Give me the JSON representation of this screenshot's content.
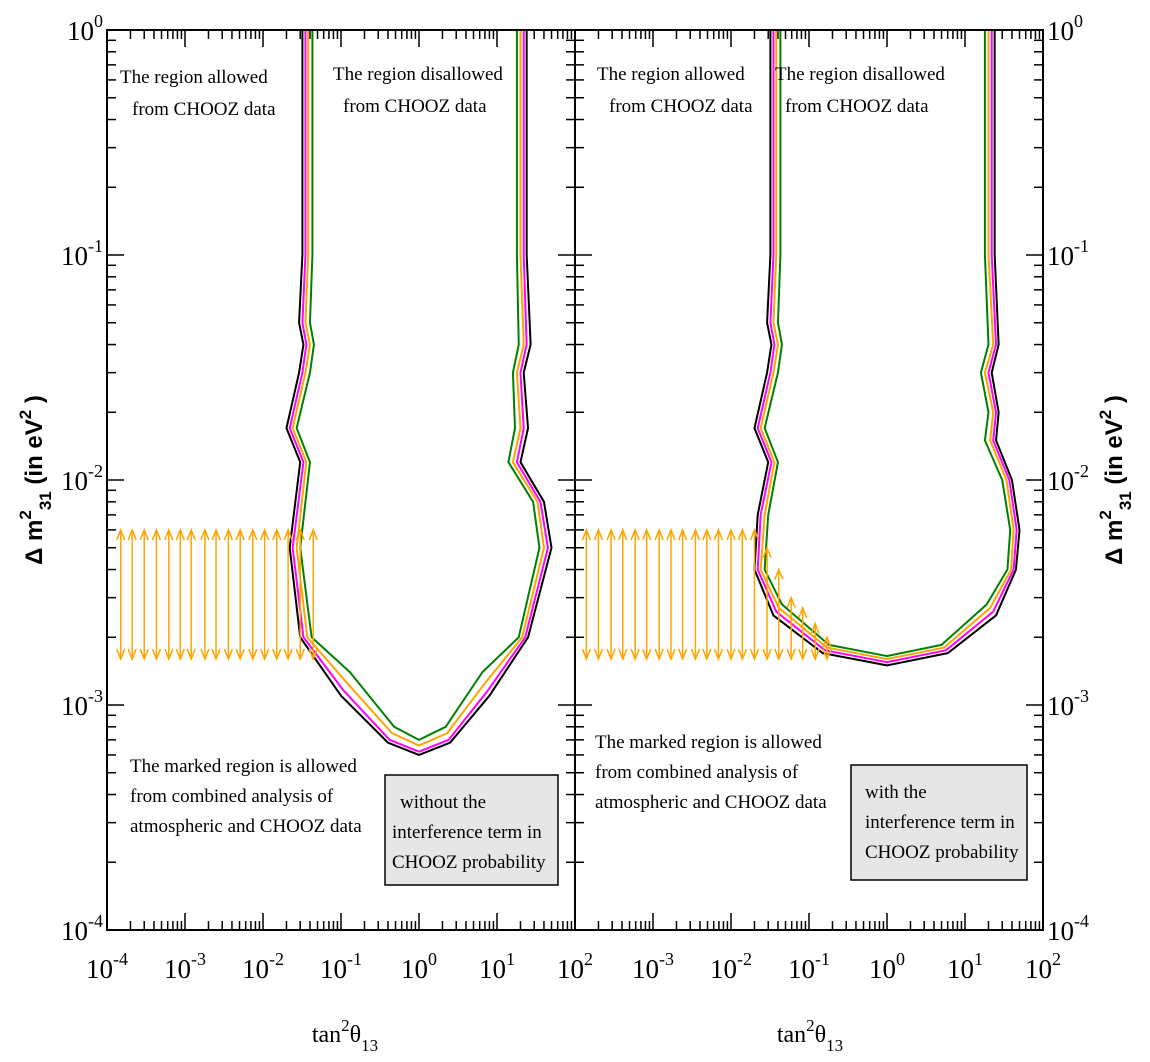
{
  "chart_data": [
    {
      "type": "contour",
      "xscale": "log",
      "yscale": "log",
      "xlim": [
        0.0001,
        100
      ],
      "ylim": [
        0.0001,
        1
      ],
      "xticks": [
        {
          "value": 0.0001,
          "label": "10",
          "exponent": "-4"
        },
        {
          "value": 0.001,
          "label": "10",
          "exponent": "-3"
        },
        {
          "value": 0.01,
          "label": "10",
          "exponent": "-2"
        },
        {
          "value": 0.1,
          "label": "10",
          "exponent": "-1"
        },
        {
          "value": 1,
          "label": "10",
          "exponent": "0"
        },
        {
          "value": 10,
          "label": "10",
          "exponent": "1"
        },
        {
          "value": 100,
          "label": "10",
          "exponent": "2"
        }
      ],
      "yticks": [
        {
          "value": 0.0001,
          "label": "10",
          "exponent": "-4"
        },
        {
          "value": 0.001,
          "label": "10",
          "exponent": "-3"
        },
        {
          "value": 0.01,
          "label": "10",
          "exponent": "-2"
        },
        {
          "value": 0.1,
          "label": "10",
          "exponent": "-1"
        },
        {
          "value": 1,
          "label": "10",
          "exponent": "0"
        }
      ],
      "ylabel_side": "left",
      "xlabel": [
        {
          "text": "tan"
        },
        {
          "text": "2",
          "shift": "sup"
        },
        {
          "text": "θ"
        },
        {
          "text": "13",
          "shift": "sub"
        }
      ],
      "ylabel": [
        {
          "text": "Δ m"
        },
        {
          "text": "2",
          "shift": "sup"
        },
        {
          "text": "31",
          "shift": "sub"
        },
        {
          "text": "  (in eV"
        },
        {
          "text": "2",
          "shift": "sup"
        },
        {
          "text": " )"
        }
      ],
      "series": [
        {
          "color": "#000000",
          "x": [
            0.032,
            0.032,
            0.029,
            0.033,
            0.029,
            0.02,
            0.03,
            0.022,
            0.03,
            0.1,
            0.4,
            1,
            2.5,
            8,
            25,
            50,
            40,
            20,
            25,
            22,
            27,
            24,
            24
          ],
          "y": [
            1,
            0.1,
            0.05,
            0.04,
            0.03,
            0.017,
            0.012,
            0.005,
            0.002,
            0.0011,
            0.00068,
            0.0006,
            0.00068,
            0.0011,
            0.002,
            0.005,
            0.008,
            0.012,
            0.017,
            0.03,
            0.04,
            0.1,
            1
          ]
        },
        {
          "color": "#ff00ff",
          "x": [
            0.035,
            0.035,
            0.032,
            0.036,
            0.032,
            0.022,
            0.033,
            0.024,
            0.033,
            0.11,
            0.42,
            1,
            2.4,
            7.5,
            23,
            45,
            36,
            18,
            22,
            20,
            24,
            22,
            22
          ],
          "y": [
            1,
            0.1,
            0.05,
            0.04,
            0.03,
            0.017,
            0.012,
            0.005,
            0.002,
            0.00115,
            0.0007,
            0.00062,
            0.0007,
            0.00115,
            0.002,
            0.005,
            0.008,
            0.012,
            0.017,
            0.03,
            0.04,
            0.1,
            1
          ]
        },
        {
          "color": "#ffa500",
          "x": [
            0.038,
            0.038,
            0.035,
            0.04,
            0.035,
            0.024,
            0.036,
            0.027,
            0.037,
            0.12,
            0.45,
            1,
            2.3,
            7,
            21,
            40,
            33,
            16,
            20,
            18,
            22,
            20,
            20
          ],
          "y": [
            1,
            0.1,
            0.05,
            0.04,
            0.03,
            0.017,
            0.012,
            0.005,
            0.002,
            0.00125,
            0.00075,
            0.00066,
            0.00075,
            0.00125,
            0.002,
            0.005,
            0.008,
            0.012,
            0.017,
            0.03,
            0.04,
            0.1,
            1
          ]
        },
        {
          "color": "#008000",
          "x": [
            0.043,
            0.043,
            0.04,
            0.045,
            0.04,
            0.027,
            0.04,
            0.03,
            0.042,
            0.13,
            0.48,
            1,
            2.2,
            6.5,
            19,
            35,
            29,
            14,
            17,
            16,
            19,
            18,
            18
          ],
          "y": [
            1,
            0.1,
            0.05,
            0.04,
            0.03,
            0.017,
            0.012,
            0.005,
            0.002,
            0.0014,
            0.0008,
            0.0007,
            0.0008,
            0.0014,
            0.002,
            0.005,
            0.008,
            0.012,
            0.017,
            0.03,
            0.04,
            0.1,
            1
          ]
        }
      ],
      "arrows": {
        "color": "#ffa500",
        "x": [
          0.00015,
          0.00021,
          0.0003,
          0.00043,
          0.00062,
          0.00087,
          0.0012,
          0.0018,
          0.0025,
          0.0036,
          0.0051,
          0.0074,
          0.0105,
          0.015,
          0.021,
          0.03,
          0.044
        ],
        "y_low": [
          0.0016,
          0.0016,
          0.0016,
          0.0016,
          0.0016,
          0.0016,
          0.0016,
          0.0016,
          0.0016,
          0.0016,
          0.0016,
          0.0016,
          0.0016,
          0.0016,
          0.0016,
          0.0016,
          0.0016
        ],
        "y_high": [
          0.006,
          0.006,
          0.006,
          0.006,
          0.006,
          0.006,
          0.006,
          0.006,
          0.006,
          0.006,
          0.006,
          0.006,
          0.006,
          0.006,
          0.006,
          0.006,
          0.006
        ]
      },
      "annotations": [
        [
          "The region allowed",
          "from CHOOZ data"
        ],
        [
          "The region disallowed",
          "from CHOOZ data"
        ],
        [
          "The marked region is allowed",
          "from combined analysis of",
          "atmospheric and CHOOZ data"
        ]
      ],
      "note": [
        "without the",
        "interference term in",
        "CHOOZ probability"
      ]
    },
    {
      "type": "contour",
      "xscale": "log",
      "yscale": "log",
      "xlim": [
        0.0001,
        100
      ],
      "ylim": [
        0.0001,
        1
      ],
      "xticks": [
        {
          "value": 0.001,
          "label": "10",
          "exponent": "-3"
        },
        {
          "value": 0.01,
          "label": "10",
          "exponent": "-2"
        },
        {
          "value": 0.1,
          "label": "10",
          "exponent": "-1"
        },
        {
          "value": 1,
          "label": "10",
          "exponent": "0"
        },
        {
          "value": 10,
          "label": "10",
          "exponent": "1"
        },
        {
          "value": 100,
          "label": "10",
          "exponent": "2"
        }
      ],
      "yticks": [
        {
          "value": 0.0001,
          "label": "10",
          "exponent": "-4"
        },
        {
          "value": 0.001,
          "label": "10",
          "exponent": "-3"
        },
        {
          "value": 0.01,
          "label": "10",
          "exponent": "-2"
        },
        {
          "value": 0.1,
          "label": "10",
          "exponent": "-1"
        },
        {
          "value": 1,
          "label": "10",
          "exponent": "0"
        }
      ],
      "ylabel_side": "right",
      "xlabel": [
        {
          "text": "tan"
        },
        {
          "text": "2",
          "shift": "sup"
        },
        {
          "text": "θ"
        },
        {
          "text": "13",
          "shift": "sub"
        }
      ],
      "ylabel": [
        {
          "text": "Δ m"
        },
        {
          "text": "2",
          "shift": "sup"
        },
        {
          "text": "31",
          "shift": "sub"
        },
        {
          "text": "  (in eV"
        },
        {
          "text": "2",
          "shift": "sup"
        },
        {
          "text": " )"
        }
      ],
      "series": [
        {
          "color": "#000000",
          "x": [
            0.032,
            0.032,
            0.029,
            0.033,
            0.029,
            0.02,
            0.03,
            0.022,
            0.02,
            0.035,
            0.15,
            1,
            6,
            25,
            45,
            50,
            40,
            25,
            27,
            22,
            27,
            24,
            24
          ],
          "y": [
            1,
            0.1,
            0.05,
            0.04,
            0.03,
            0.017,
            0.012,
            0.007,
            0.004,
            0.0025,
            0.0017,
            0.0015,
            0.0017,
            0.0025,
            0.004,
            0.006,
            0.01,
            0.015,
            0.02,
            0.03,
            0.04,
            0.1,
            1
          ]
        },
        {
          "color": "#ff00ff",
          "x": [
            0.035,
            0.035,
            0.032,
            0.036,
            0.032,
            0.022,
            0.033,
            0.024,
            0.022,
            0.038,
            0.16,
            1,
            5.7,
            23,
            42,
            46,
            37,
            23,
            25,
            20,
            25,
            22,
            22
          ],
          "y": [
            1,
            0.1,
            0.05,
            0.04,
            0.03,
            0.017,
            0.012,
            0.007,
            0.004,
            0.0026,
            0.00175,
            0.00155,
            0.00175,
            0.0026,
            0.004,
            0.006,
            0.01,
            0.015,
            0.02,
            0.03,
            0.04,
            0.1,
            1
          ]
        },
        {
          "color": "#ffa500",
          "x": [
            0.038,
            0.038,
            0.035,
            0.04,
            0.035,
            0.024,
            0.036,
            0.027,
            0.024,
            0.041,
            0.17,
            1,
            5.4,
            21,
            39,
            42,
            34,
            21,
            23,
            18,
            23,
            20,
            20
          ],
          "y": [
            1,
            0.1,
            0.05,
            0.04,
            0.03,
            0.017,
            0.012,
            0.007,
            0.004,
            0.0027,
            0.0018,
            0.0016,
            0.0018,
            0.0027,
            0.004,
            0.006,
            0.01,
            0.015,
            0.02,
            0.03,
            0.04,
            0.1,
            1
          ]
        },
        {
          "color": "#008000",
          "x": [
            0.043,
            0.043,
            0.04,
            0.045,
            0.04,
            0.027,
            0.04,
            0.03,
            0.027,
            0.045,
            0.18,
            1,
            5,
            19,
            35,
            38,
            30,
            18,
            20,
            16,
            20,
            18,
            18
          ],
          "y": [
            1,
            0.1,
            0.05,
            0.04,
            0.03,
            0.017,
            0.012,
            0.007,
            0.004,
            0.0028,
            0.00185,
            0.00165,
            0.00185,
            0.0028,
            0.004,
            0.006,
            0.01,
            0.015,
            0.02,
            0.03,
            0.04,
            0.1,
            1
          ]
        }
      ],
      "arrows": {
        "color": "#ffa500",
        "x": [
          0.00014,
          0.0002,
          0.00029,
          0.00041,
          0.00059,
          0.00083,
          0.0012,
          0.0017,
          0.0024,
          0.0035,
          0.0049,
          0.0069,
          0.01,
          0.014,
          0.02,
          0.029,
          0.041,
          0.059,
          0.083,
          0.12,
          0.17
        ],
        "y_low": [
          0.0016,
          0.0016,
          0.0016,
          0.0016,
          0.0016,
          0.0016,
          0.0016,
          0.0016,
          0.0016,
          0.0016,
          0.0016,
          0.0016,
          0.0016,
          0.0016,
          0.0016,
          0.0016,
          0.0016,
          0.0016,
          0.0016,
          0.0016,
          0.0016
        ],
        "y_high": [
          0.006,
          0.006,
          0.006,
          0.006,
          0.006,
          0.006,
          0.006,
          0.006,
          0.006,
          0.006,
          0.006,
          0.006,
          0.006,
          0.006,
          0.006,
          0.005,
          0.004,
          0.003,
          0.0027,
          0.0023,
          0.002
        ]
      },
      "annotations": [
        [
          "The region allowed",
          "from CHOOZ data"
        ],
        [
          "The region disallowed",
          "from CHOOZ data"
        ],
        [
          "The marked region is allowed",
          "from combined analysis of",
          "atmospheric and CHOOZ data"
        ]
      ],
      "note": [
        "with the",
        "interference term in",
        "CHOOZ probability"
      ]
    }
  ]
}
